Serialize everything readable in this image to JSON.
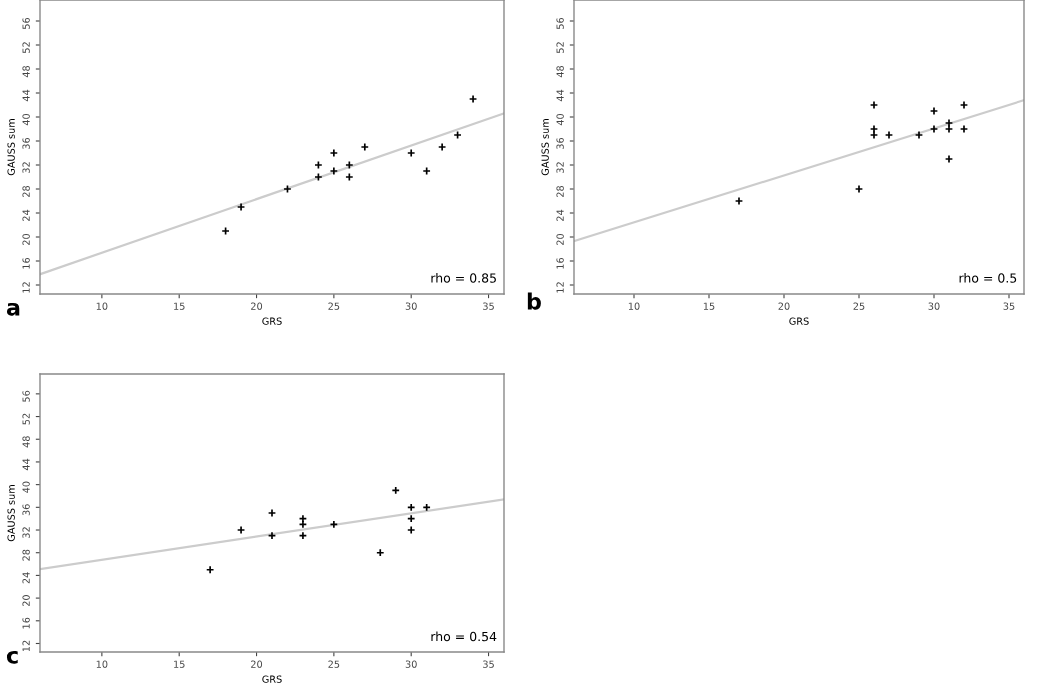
{
  "chart_data": [
    {
      "type": "scatter",
      "xlabel": "GRS",
      "ylabel": "GAUSS sum",
      "xlim": [
        6,
        36
      ],
      "ylim": [
        10.5,
        59.5
      ],
      "xticks": [
        10,
        15,
        20,
        25,
        30,
        35
      ],
      "yticks": [
        12,
        16,
        20,
        24,
        28,
        32,
        36,
        40,
        44,
        48,
        52,
        56
      ],
      "grid": false,
      "annotations": [
        "rho = 0.85",
        "a"
      ],
      "series": [
        {
          "color": "#000000",
          "marker": "cross",
          "x": [
            18,
            19,
            22,
            24,
            24,
            25,
            25,
            26,
            26,
            27,
            30,
            31,
            32,
            33,
            34
          ],
          "values": [
            21,
            25,
            28,
            32,
            30,
            34,
            31,
            32,
            30,
            35,
            34,
            31,
            35,
            37,
            43
          ]
        },
        {
          "type": "line",
          "color": "#cccccc",
          "x": [
            6,
            36
          ],
          "values": [
            13.8,
            40.6
          ]
        }
      ]
    },
    {
      "type": "scatter",
      "xlabel": "GRS",
      "ylabel": "GAUSS sum",
      "xlim": [
        6,
        36
      ],
      "ylim": [
        10.5,
        59.5
      ],
      "xticks": [
        10,
        15,
        20,
        25,
        30,
        35
      ],
      "yticks": [
        12,
        16,
        20,
        24,
        28,
        32,
        36,
        40,
        44,
        48,
        52,
        56
      ],
      "grid": false,
      "annotations": [
        "rho = 0.5",
        "b"
      ],
      "series": [
        {
          "color": "#000000",
          "marker": "cross",
          "x": [
            17,
            25,
            26,
            26,
            26,
            27,
            29,
            30,
            30,
            31,
            31,
            31,
            32,
            32
          ],
          "values": [
            26,
            28,
            42,
            38,
            37,
            37,
            37,
            41,
            38,
            39,
            38,
            33,
            42,
            38
          ]
        },
        {
          "type": "line",
          "color": "#cccccc",
          "x": [
            6,
            36
          ],
          "values": [
            19.3,
            42.8
          ]
        }
      ]
    },
    {
      "type": "scatter",
      "xlabel": "GRS",
      "ylabel": "GAUSS sum",
      "xlim": [
        6,
        36
      ],
      "ylim": [
        10.5,
        59.5
      ],
      "xticks": [
        10,
        15,
        20,
        25,
        30,
        35
      ],
      "yticks": [
        12,
        16,
        20,
        24,
        28,
        32,
        36,
        40,
        44,
        48,
        52,
        56
      ],
      "grid": false,
      "annotations": [
        "rho = 0.54",
        "c"
      ],
      "series": [
        {
          "color": "#000000",
          "marker": "cross",
          "x": [
            17,
            19,
            21,
            21,
            23,
            23,
            23,
            25,
            28,
            29,
            30,
            30,
            30,
            31
          ],
          "values": [
            25,
            32,
            35,
            31,
            34,
            33,
            31,
            33,
            28,
            39,
            36,
            34,
            32,
            36
          ]
        },
        {
          "type": "line",
          "color": "#cccccc",
          "x": [
            6,
            36
          ],
          "values": [
            25.1,
            37.4
          ]
        }
      ]
    }
  ]
}
